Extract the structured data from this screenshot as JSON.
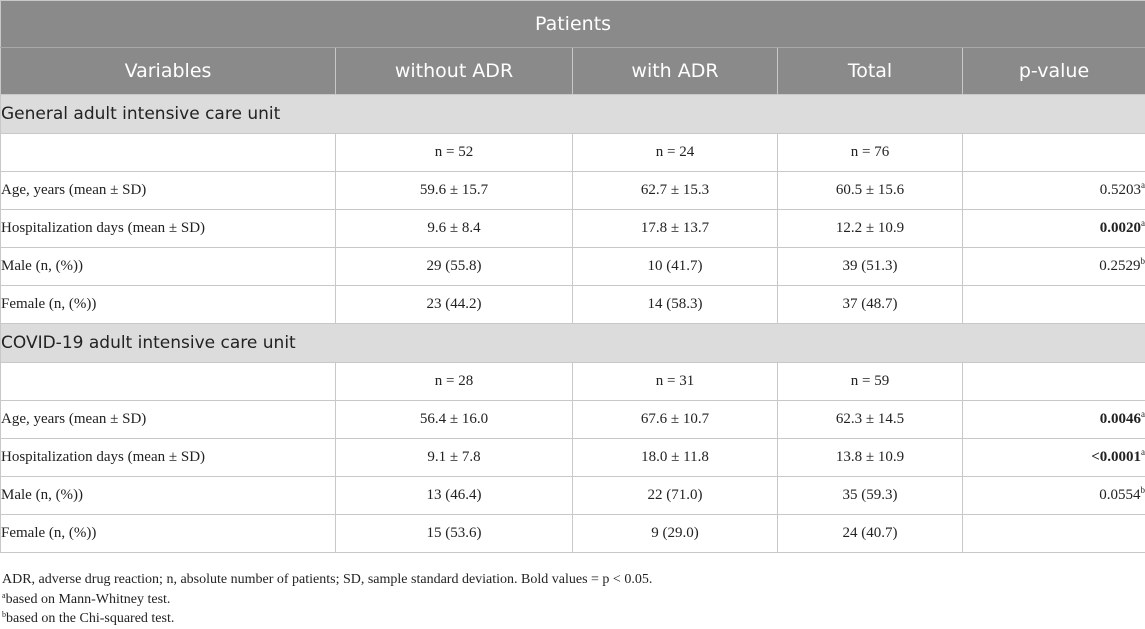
{
  "table": {
    "top_header": "Patients",
    "columns": [
      "Variables",
      "without ADR",
      "with ADR",
      "Total",
      "p-value"
    ],
    "sections": [
      {
        "title": "General adult intensive care unit",
        "rows": [
          {
            "label": "",
            "without": "n = 52",
            "with": "n = 24",
            "total": "n = 76",
            "p": "",
            "p_bold": false,
            "sup": ""
          },
          {
            "label": "Age, years (mean ± SD)",
            "without": "59.6 ± 15.7",
            "with": "62.7 ± 15.3",
            "total": "60.5 ± 15.6",
            "p": "0.5203",
            "p_bold": false,
            "sup": "a"
          },
          {
            "label": "Hospitalization days (mean ± SD)",
            "without": "9.6 ± 8.4",
            "with": "17.8 ± 13.7",
            "total": "12.2 ± 10.9",
            "p": "0.0020",
            "p_bold": true,
            "sup": "a"
          },
          {
            "label": "Male (n, (%))",
            "without": "29 (55.8)",
            "with": "10 (41.7)",
            "total": "39 (51.3)",
            "p": "0.2529",
            "p_bold": false,
            "sup": "b"
          },
          {
            "label": "Female (n, (%))",
            "without": "23 (44.2)",
            "with": "14 (58.3)",
            "total": "37 (48.7)",
            "p": "",
            "p_bold": false,
            "sup": ""
          }
        ]
      },
      {
        "title": "COVID-19 adult intensive care unit",
        "rows": [
          {
            "label": "",
            "without": "n = 28",
            "with": "n = 31",
            "total": "n = 59",
            "p": "",
            "p_bold": false,
            "sup": ""
          },
          {
            "label": "Age, years (mean ± SD)",
            "without": "56.4 ± 16.0",
            "with": "67.6 ± 10.7",
            "total": "62.3 ± 14.5",
            "p": "0.0046",
            "p_bold": true,
            "sup": "a"
          },
          {
            "label": "Hospitalization days (mean ± SD)",
            "without": "9.1 ± 7.8",
            "with": "18.0 ± 11.8",
            "total": "13.8 ± 10.9",
            "p": "<0.0001",
            "p_bold": true,
            "sup": "a"
          },
          {
            "label": "Male (n, (%))",
            "without": "13 (46.4)",
            "with": "22 (71.0)",
            "total": "35 (59.3)",
            "p": "0.0554",
            "p_bold": false,
            "sup": "b"
          },
          {
            "label": "Female (n, (%))",
            "without": "15 (53.6)",
            "with": "9 (29.0)",
            "total": "24 (40.7)",
            "p": "",
            "p_bold": false,
            "sup": ""
          }
        ]
      }
    ]
  },
  "footnotes": {
    "abbreviations": "ADR, adverse drug reaction; n, absolute number of patients; SD, sample standard deviation. Bold values = p < 0.05.",
    "a_mark": "a",
    "a_text": "based on Mann-Whitney test.",
    "b_mark": "b",
    "b_text": "based on the Chi-squared test."
  }
}
